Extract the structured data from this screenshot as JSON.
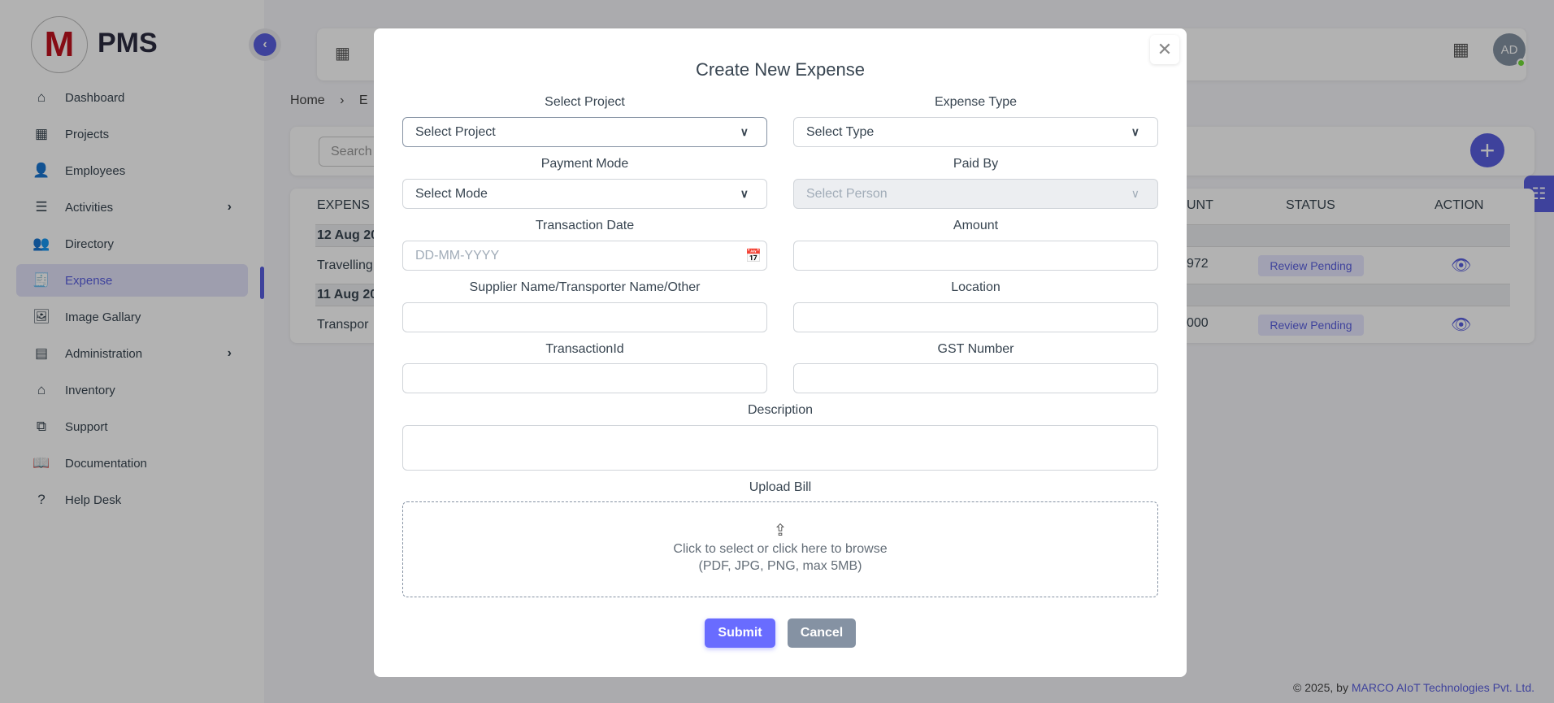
{
  "app": {
    "brand": "PMS",
    "logo_letter": "M"
  },
  "sidebar": {
    "items": [
      {
        "label": "Dashboard",
        "icon": "home-icon",
        "glyph": "⌂"
      },
      {
        "label": "Projects",
        "icon": "building-icon",
        "glyph": "▦"
      },
      {
        "label": "Employees",
        "icon": "user-icon",
        "glyph": "👤"
      },
      {
        "label": "Activities",
        "icon": "list-icon",
        "glyph": "☰",
        "chevron": "›"
      },
      {
        "label": "Directory",
        "icon": "users-icon",
        "glyph": "👥"
      },
      {
        "label": "Expense",
        "icon": "receipt-icon",
        "glyph": "🧾",
        "active": true
      },
      {
        "label": "Image Gallary",
        "icon": "gallery-icon",
        "glyph": "🖼"
      },
      {
        "label": "Administration",
        "icon": "archive-icon",
        "glyph": "▤",
        "chevron": "›"
      },
      {
        "label": "Inventory",
        "icon": "store-icon",
        "glyph": "⌂"
      },
      {
        "label": "Support",
        "icon": "copy-icon",
        "glyph": "⧉"
      },
      {
        "label": "Documentation",
        "icon": "book-icon",
        "glyph": "📖"
      },
      {
        "label": "Help Desk",
        "icon": "question-icon",
        "glyph": "?"
      }
    ]
  },
  "header": {
    "avatar": "AD"
  },
  "breadcrumb": {
    "home": "Home",
    "sep": "›",
    "current": "E"
  },
  "search": {
    "placeholder": "Search"
  },
  "table": {
    "headers": {
      "expense": "EXPENS",
      "amount": "UNT",
      "status": "STATUS",
      "action": "ACTION"
    },
    "groups": [
      {
        "date": "12 Aug 20",
        "row": {
          "type": "Travelling",
          "amount": "972",
          "status": "Review Pending"
        }
      },
      {
        "date": "11 Aug 20",
        "row": {
          "type": "Transpor",
          "amount": "000",
          "status": "Review Pending"
        }
      }
    ]
  },
  "footer": {
    "prefix": "© 2025, by ",
    "company": "MARCO AIoT Technologies Pvt. Ltd."
  },
  "modal": {
    "title": "Create New Expense",
    "fields": {
      "project": {
        "label": "Select Project",
        "value": "Select Project"
      },
      "expense_type": {
        "label": "Expense Type",
        "value": "Select Type"
      },
      "payment_mode": {
        "label": "Payment Mode",
        "value": "Select Mode"
      },
      "paid_by": {
        "label": "Paid By",
        "value": "Select Person"
      },
      "transaction_date": {
        "label": "Transaction Date",
        "placeholder": "DD-MM-YYYY"
      },
      "amount": {
        "label": "Amount",
        "value": ""
      },
      "supplier": {
        "label": "Supplier Name/Transporter Name/Other",
        "value": ""
      },
      "location": {
        "label": "Location",
        "value": ""
      },
      "transaction_id": {
        "label": "TransactionId",
        "value": ""
      },
      "gst": {
        "label": "GST Number",
        "value": ""
      },
      "description": {
        "label": "Description",
        "value": ""
      }
    },
    "upload": {
      "label": "Upload Bill",
      "text": "Click to select or click here to browse",
      "hint": "(PDF, JPG, PNG, max 5MB)"
    },
    "submit": "Submit",
    "cancel": "Cancel"
  },
  "colors": {
    "accent": "#5a5fe0",
    "submit": "#696cff",
    "cancel": "#8592a3"
  }
}
